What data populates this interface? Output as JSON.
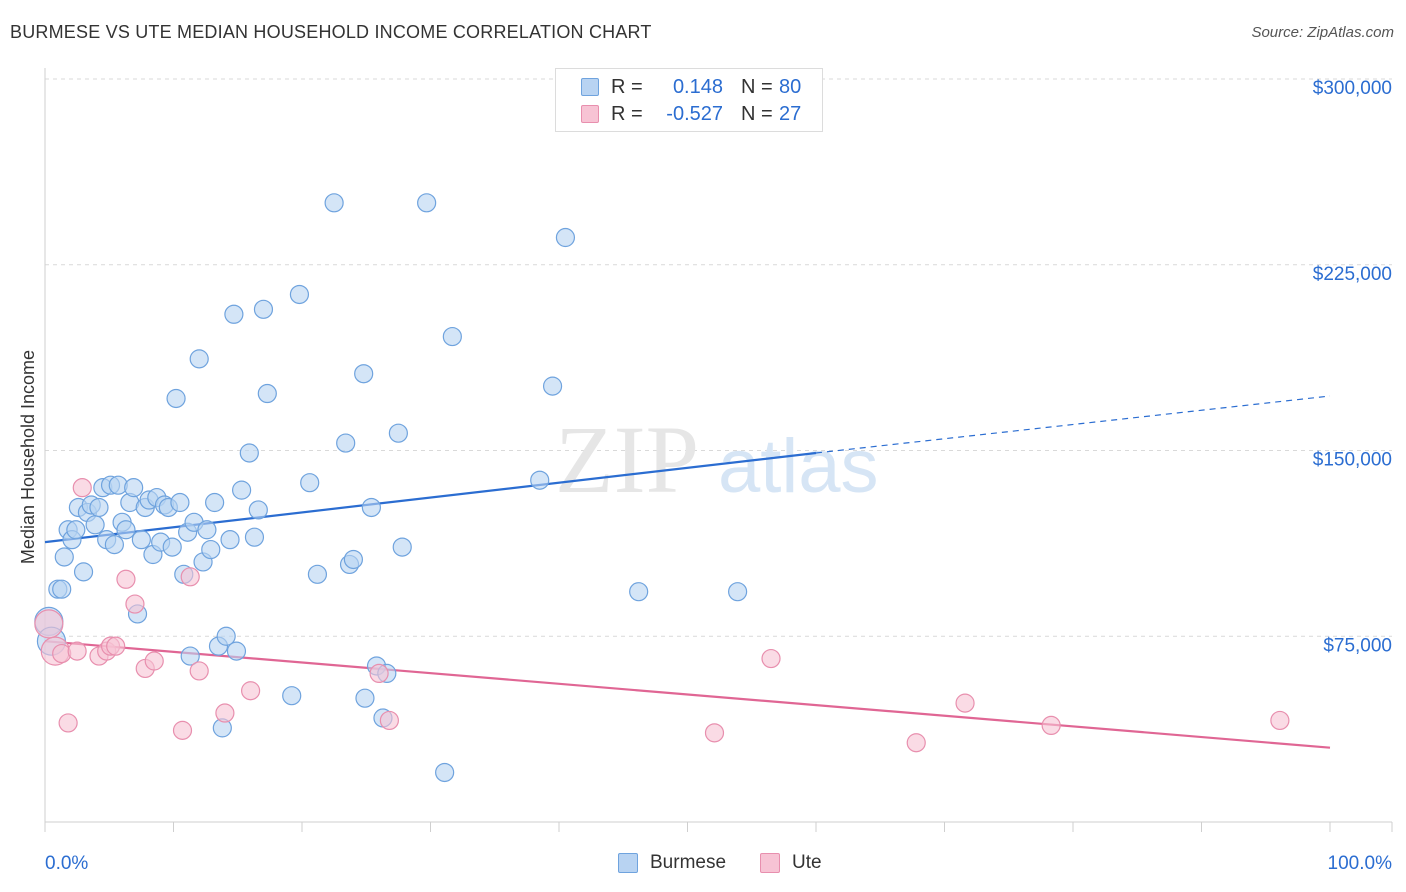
{
  "title": "BURMESE VS UTE MEDIAN HOUSEHOLD INCOME CORRELATION CHART",
  "source": "Source: ZipAtlas.com",
  "watermark": {
    "zip": "ZIP",
    "atlas": "atlas"
  },
  "legend": {
    "r_label": "R =",
    "n_label": "N =",
    "rows": [
      {
        "name": "Burmese",
        "r": "0.148",
        "n": "80"
      },
      {
        "name": "Ute",
        "r": "-0.527",
        "n": "27"
      }
    ]
  },
  "colors": {
    "burmese_fill": "#b8d3f2",
    "burmese_stroke": "#6fa3de",
    "burmese_line": "#2b6dd1",
    "ute_fill": "#f7c3d4",
    "ute_stroke": "#e88fae",
    "ute_line": "#e06694",
    "axis_label": "#2b6dd1",
    "grid": "#d9d9d9"
  },
  "chart_data": {
    "type": "scatter",
    "title": "BURMESE VS UTE MEDIAN HOUSEHOLD INCOME CORRELATION CHART",
    "xlabel": "",
    "ylabel": "Median Household Income",
    "xlim": [
      0,
      100
    ],
    "ylim": [
      0,
      300000
    ],
    "x_tick_labels": [
      "0.0%",
      "100.0%"
    ],
    "y_ticks": [
      75000,
      150000,
      225000,
      300000
    ],
    "y_tick_labels": [
      "$75,000",
      "$150,000",
      "$225,000",
      "$300,000"
    ],
    "grid": "horizontal dashed",
    "legend_position": "top-center",
    "series": [
      {
        "name": "Burmese",
        "r": 0.148,
        "n": 80,
        "trend": {
          "x": [
            0,
            60
          ],
          "y": [
            113000,
            149000
          ],
          "dashed_x": [
            60,
            100
          ],
          "dashed_y": [
            149000,
            172000
          ]
        },
        "points": [
          [
            0.3,
            81000
          ],
          [
            0.5,
            73000
          ],
          [
            1,
            94000
          ],
          [
            1.3,
            94000
          ],
          [
            1.5,
            107000
          ],
          [
            1.8,
            118000
          ],
          [
            2.1,
            114000
          ],
          [
            2.4,
            118000
          ],
          [
            2.6,
            127000
          ],
          [
            3.0,
            101000
          ],
          [
            3.3,
            125000
          ],
          [
            3.6,
            128000
          ],
          [
            3.9,
            120000
          ],
          [
            4.2,
            127000
          ],
          [
            4.5,
            135000
          ],
          [
            4.8,
            114000
          ],
          [
            5.1,
            136000
          ],
          [
            5.4,
            112000
          ],
          [
            5.7,
            136000
          ],
          [
            6.0,
            121000
          ],
          [
            6.3,
            118000
          ],
          [
            6.6,
            129000
          ],
          [
            6.9,
            135000
          ],
          [
            7.2,
            84000
          ],
          [
            7.5,
            114000
          ],
          [
            7.8,
            127000
          ],
          [
            8.1,
            130000
          ],
          [
            8.4,
            108000
          ],
          [
            8.7,
            131000
          ],
          [
            9.0,
            113000
          ],
          [
            9.3,
            128000
          ],
          [
            9.6,
            127000
          ],
          [
            9.9,
            111000
          ],
          [
            10.2,
            171000
          ],
          [
            10.5,
            129000
          ],
          [
            10.8,
            100000
          ],
          [
            11.1,
            117000
          ],
          [
            11.3,
            67000
          ],
          [
            11.6,
            121000
          ],
          [
            12.0,
            187000
          ],
          [
            12.3,
            105000
          ],
          [
            12.6,
            118000
          ],
          [
            12.9,
            110000
          ],
          [
            13.2,
            129000
          ],
          [
            13.5,
            71000
          ],
          [
            13.8,
            38000
          ],
          [
            14.1,
            75000
          ],
          [
            14.4,
            114000
          ],
          [
            14.7,
            205000
          ],
          [
            14.9,
            69000
          ],
          [
            15.3,
            134000
          ],
          [
            15.9,
            149000
          ],
          [
            16.3,
            115000
          ],
          [
            16.6,
            126000
          ],
          [
            17.0,
            207000
          ],
          [
            17.3,
            173000
          ],
          [
            19.2,
            51000
          ],
          [
            19.8,
            213000
          ],
          [
            20.6,
            137000
          ],
          [
            21.2,
            100000
          ],
          [
            22.5,
            250000
          ],
          [
            23.4,
            153000
          ],
          [
            23.7,
            104000
          ],
          [
            24.0,
            106000
          ],
          [
            24.8,
            181000
          ],
          [
            24.9,
            50000
          ],
          [
            25.4,
            127000
          ],
          [
            25.8,
            63000
          ],
          [
            26.3,
            42000
          ],
          [
            26.6,
            60000
          ],
          [
            27.5,
            157000
          ],
          [
            27.8,
            111000
          ],
          [
            29.7,
            250000
          ],
          [
            31.1,
            20000
          ],
          [
            31.7,
            196000
          ],
          [
            38.5,
            138000
          ],
          [
            39.5,
            176000
          ],
          [
            40.5,
            236000
          ],
          [
            46.2,
            93000
          ],
          [
            53.9,
            93000
          ]
        ]
      },
      {
        "name": "Ute",
        "r": -0.527,
        "n": 27,
        "trend": {
          "x": [
            0,
            100
          ],
          "y": [
            73000,
            30000
          ]
        },
        "points": [
          [
            0.3,
            80000
          ],
          [
            0.8,
            69000
          ],
          [
            1.3,
            68000
          ],
          [
            1.8,
            40000
          ],
          [
            2.5,
            69000
          ],
          [
            2.9,
            135000
          ],
          [
            4.2,
            67000
          ],
          [
            4.8,
            69000
          ],
          [
            5.1,
            71000
          ],
          [
            5.5,
            71000
          ],
          [
            6.3,
            98000
          ],
          [
            7.0,
            88000
          ],
          [
            7.8,
            62000
          ],
          [
            8.5,
            65000
          ],
          [
            10.7,
            37000
          ],
          [
            11.3,
            99000
          ],
          [
            12.0,
            61000
          ],
          [
            14.0,
            44000
          ],
          [
            16.0,
            53000
          ],
          [
            26.0,
            60000
          ],
          [
            26.8,
            41000
          ],
          [
            52.1,
            36000
          ],
          [
            56.5,
            66000
          ],
          [
            67.8,
            32000
          ],
          [
            71.6,
            48000
          ],
          [
            78.3,
            39000
          ],
          [
            96.1,
            41000
          ]
        ]
      }
    ]
  }
}
